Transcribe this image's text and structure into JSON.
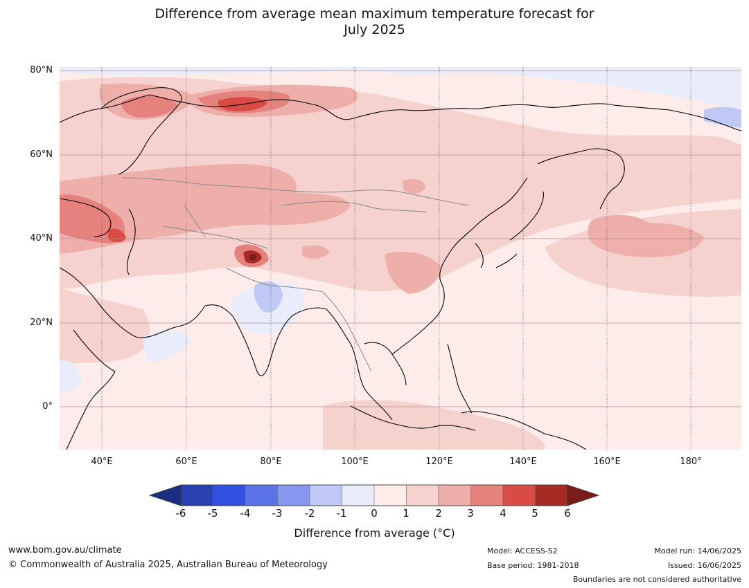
{
  "title_line1": "Difference from average mean maximum temperature forecast for",
  "title_line2": "July 2025",
  "map": {
    "lat_ticks": [
      "80°N",
      "60°N",
      "40°N",
      "20°N",
      "0°"
    ],
    "lon_ticks": [
      "40°E",
      "60°E",
      "80°E",
      "100°E",
      "120°E",
      "140°E",
      "160°E",
      "180°"
    ]
  },
  "colorbar": {
    "ticks": [
      "-6",
      "-5",
      "-4",
      "-3",
      "-2",
      "-1",
      "0",
      "1",
      "2",
      "3",
      "4",
      "5",
      "6"
    ],
    "colors": [
      "#1c2e80",
      "#2a3fb0",
      "#3050e0",
      "#5b73e6",
      "#8797ee",
      "#c0c8f5",
      "#e8ecfb",
      "#fdecea",
      "#f6d2cf",
      "#eeaeaa",
      "#e5827d",
      "#d94b45",
      "#a82a25",
      "#7a1c1a"
    ],
    "label": "Difference from average (°C)"
  },
  "footer": {
    "url": "www.bom.gov.au/climate",
    "copyright": "© Commonwealth of Australia 2025, Australian Bureau of Meteorology",
    "model": "Model: ACCESS-S2",
    "base_period": "Base period: 1981-2018",
    "model_run": "Model run: 14/06/2025",
    "issued": "Issued: 16/06/2025",
    "disclaimer": "Boundaries are not considered authoritative"
  }
}
